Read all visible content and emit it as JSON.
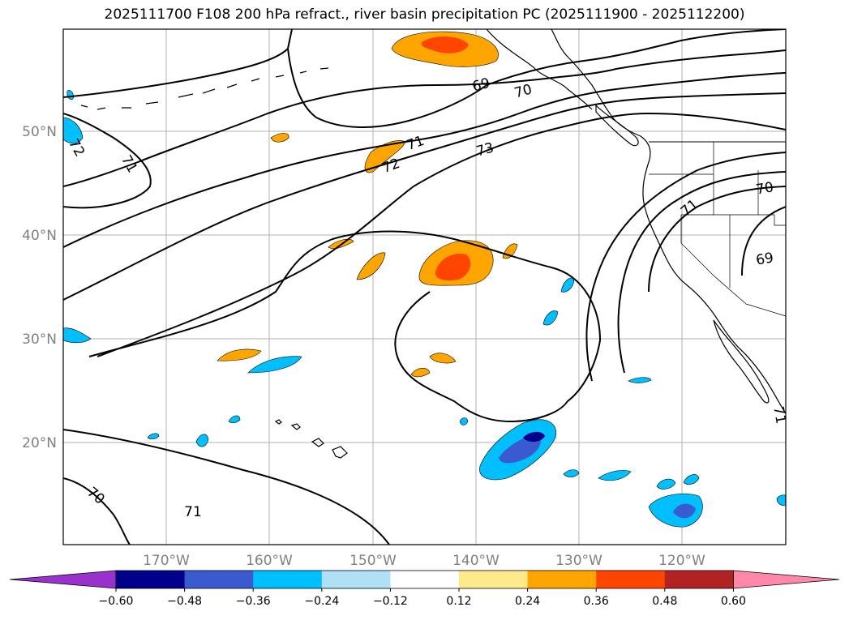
{
  "title": "2025111700 F108 200 hPa refract., river basin precipitation PC (2025111900 - 2025112200)",
  "lat_labels": [
    "50°N",
    "40°N",
    "30°N",
    "20°N"
  ],
  "lon_labels": [
    "170°W",
    "160°W",
    "150°W",
    "140°W",
    "130°W",
    "120°W"
  ],
  "colorbar": {
    "colors": [
      "#9932cc",
      "#00008b",
      "#3a5bd0",
      "#00bfff",
      "#b0e0f8",
      "#ffffff",
      "#ffe98a",
      "#ffa500",
      "#ff4500",
      "#b22222",
      "#ff88aa"
    ],
    "tick_labels": [
      "−0.60",
      "−0.48",
      "−0.36",
      "−0.24",
      "−0.12",
      "0.12",
      "0.24",
      "0.36",
      "0.48",
      "0.60"
    ]
  },
  "contour_labels": [
    "69",
    "70",
    "71",
    "72",
    "73",
    "71",
    "72",
    "71",
    "70",
    "71",
    "70",
    "69",
    "71"
  ],
  "colors": {
    "contour": "#000000",
    "grid": "#b0b0b0",
    "coast": "#000000",
    "axis_label": "#808080"
  }
}
